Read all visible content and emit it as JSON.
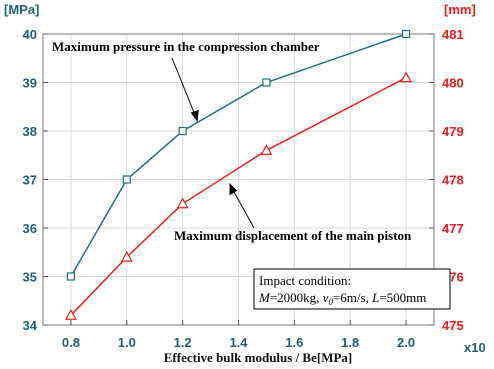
{
  "chart_data": {
    "type": "line",
    "xlabel": "Effective bulk modulus / Be[MPa]",
    "x_multiplier": "x10",
    "left_unit": "[MPa]",
    "right_unit": "[mm]",
    "x": [
      0.8,
      1.0,
      1.2,
      1.5,
      2.0
    ],
    "xlim": [
      0.7,
      2.1
    ],
    "x_ticks": [
      "0.8",
      "1.0",
      "1.2",
      "1.4",
      "1.6",
      "1.8",
      "2.0"
    ],
    "ylim_left": [
      34,
      40
    ],
    "y_ticks_left": [
      "34",
      "35",
      "36",
      "37",
      "38",
      "39",
      "40"
    ],
    "ylim_right": [
      475,
      481
    ],
    "y_ticks_right": [
      "475",
      "476",
      "477",
      "478",
      "479",
      "480",
      "481"
    ],
    "series": [
      {
        "values": [
          35,
          37,
          38,
          39,
          40
        ],
        "axis": "left",
        "marker": "square",
        "color": "#1f6f8b"
      },
      {
        "values": [
          475.2,
          476.4,
          477.5,
          478.6,
          480.1
        ],
        "axis": "right",
        "marker": "triangle",
        "color": "#e8201c"
      }
    ],
    "annotations": {
      "pressure": "Maximum pressure in the compression chamber",
      "displacement": "Maximum displacement of the main piston"
    },
    "condition_box": {
      "title": "Impact condition:",
      "m_label": "M",
      "m_value": "=2000kg, ",
      "v_label": "v",
      "v_sub": "0",
      "v_value": "=6m/s, ",
      "l_label": "L",
      "l_value": "=500mm"
    },
    "grid": true,
    "colors": {
      "left_axis": "#1f5f7a",
      "right_axis": "#ea1c1c",
      "grid": "#d9d9d9"
    }
  }
}
